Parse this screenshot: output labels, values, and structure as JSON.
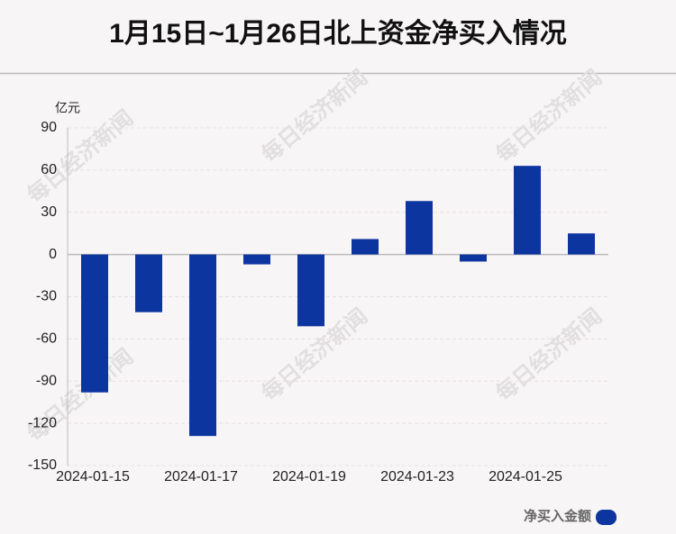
{
  "chart_data": {
    "type": "bar",
    "title": "1月15日~1月26日北上资金净买入情况",
    "y_unit": "亿元",
    "categories": [
      "2024-01-15",
      null,
      "2024-01-17",
      null,
      "2024-01-19",
      null,
      "2024-01-23",
      null,
      "2024-01-25",
      null
    ],
    "series": [
      {
        "name": "净买入金额",
        "color": "#0d35a0",
        "values": [
          -98,
          -41,
          -129,
          -7,
          -51,
          11,
          38,
          -5,
          63,
          15
        ]
      }
    ],
    "ylim": [
      -150,
      90
    ],
    "yticks": [
      90,
      60,
      30,
      0,
      -30,
      -60,
      -90,
      -120,
      -150
    ],
    "grid": true,
    "legend": "bottom-right",
    "watermark": "每日经济新闻"
  }
}
